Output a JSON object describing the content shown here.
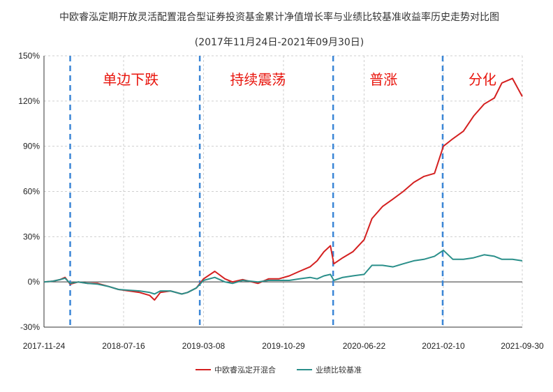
{
  "chart_data": {
    "type": "line",
    "title": "中欧睿泓定期开放灵活配置混合型证券投资基金累计净值增长率与业绩比较基准收益率历史走势对比图",
    "subtitle": "(2017年11月24日-2021年09月30日)",
    "ylim": [
      -30,
      150
    ],
    "y_ticks": [
      "-30%",
      "0%",
      "30%",
      "60%",
      "90%",
      "120%",
      "150%"
    ],
    "y_tick_values": [
      -30,
      0,
      30,
      60,
      90,
      120,
      150
    ],
    "x_ticks": [
      "2017-11-24",
      "2018-07-16",
      "2019-03-08",
      "2019-10-29",
      "2020-06-22",
      "2021-02-10",
      "2021-09-30"
    ],
    "grid": true,
    "legend_position": "bottom",
    "phase_dividers": [
      "2018-02-09",
      "2019-02-25",
      "2020-03-23",
      "2021-02-08"
    ],
    "phases": [
      {
        "label": "单边下跌",
        "center_date": "2018-08-06"
      },
      {
        "label": "持续震荡",
        "center_date": "2019-08-15"
      },
      {
        "label": "普涨",
        "center_date": "2020-08-18"
      },
      {
        "label": "分化",
        "center_date": "2021-06-05"
      }
    ],
    "series": [
      {
        "name": "中欧睿泓定开混合",
        "color": "#d42020",
        "points": [
          [
            "2017-11-24",
            0
          ],
          [
            "2017-12-20",
            0.5
          ],
          [
            "2018-01-10",
            1.5
          ],
          [
            "2018-01-25",
            3
          ],
          [
            "2018-02-09",
            -1.5
          ],
          [
            "2018-03-05",
            0
          ],
          [
            "2018-04-01",
            -1
          ],
          [
            "2018-05-01",
            -1
          ],
          [
            "2018-06-01",
            -3
          ],
          [
            "2018-07-01",
            -5
          ],
          [
            "2018-08-01",
            -6
          ],
          [
            "2018-09-01",
            -7
          ],
          [
            "2018-10-01",
            -9
          ],
          [
            "2018-10-15",
            -12
          ],
          [
            "2018-11-01",
            -7
          ],
          [
            "2018-12-01",
            -6
          ],
          [
            "2019-01-03",
            -8
          ],
          [
            "2019-01-20",
            -7
          ],
          [
            "2019-02-15",
            -4
          ],
          [
            "2019-03-08",
            2
          ],
          [
            "2019-04-10",
            7
          ],
          [
            "2019-05-10",
            2
          ],
          [
            "2019-06-01",
            0
          ],
          [
            "2019-07-01",
            1.5
          ],
          [
            "2019-08-15",
            -1
          ],
          [
            "2019-09-15",
            2
          ],
          [
            "2019-10-15",
            2
          ],
          [
            "2019-11-15",
            4
          ],
          [
            "2019-12-15",
            7
          ],
          [
            "2020-01-15",
            10
          ],
          [
            "2020-02-05",
            14
          ],
          [
            "2020-02-25",
            20
          ],
          [
            "2020-03-15",
            24
          ],
          [
            "2020-03-25",
            12
          ],
          [
            "2020-04-20",
            16
          ],
          [
            "2020-05-20",
            20
          ],
          [
            "2020-06-22",
            28
          ],
          [
            "2020-07-15",
            42
          ],
          [
            "2020-08-15",
            50
          ],
          [
            "2020-09-15",
            55
          ],
          [
            "2020-10-15",
            60
          ],
          [
            "2020-11-15",
            66
          ],
          [
            "2020-12-15",
            70
          ],
          [
            "2021-01-15",
            72
          ],
          [
            "2021-02-10",
            90
          ],
          [
            "2021-03-10",
            95
          ],
          [
            "2021-04-10",
            100
          ],
          [
            "2021-05-10",
            110
          ],
          [
            "2021-06-10",
            118
          ],
          [
            "2021-07-10",
            122
          ],
          [
            "2021-08-01",
            132
          ],
          [
            "2021-09-01",
            135
          ],
          [
            "2021-09-30",
            123
          ]
        ]
      },
      {
        "name": "业绩比较基准",
        "color": "#2a8f8a",
        "points": [
          [
            "2017-11-24",
            0
          ],
          [
            "2017-12-20",
            0.5
          ],
          [
            "2018-01-10",
            1.5
          ],
          [
            "2018-01-25",
            2.5
          ],
          [
            "2018-02-09",
            -1
          ],
          [
            "2018-03-05",
            0
          ],
          [
            "2018-04-01",
            -1
          ],
          [
            "2018-05-01",
            -1.5
          ],
          [
            "2018-06-01",
            -3
          ],
          [
            "2018-07-01",
            -5
          ],
          [
            "2018-08-01",
            -5.5
          ],
          [
            "2018-09-01",
            -6
          ],
          [
            "2018-10-01",
            -7
          ],
          [
            "2018-10-15",
            -8
          ],
          [
            "2018-11-01",
            -6
          ],
          [
            "2018-12-01",
            -6
          ],
          [
            "2019-01-03",
            -8
          ],
          [
            "2019-01-20",
            -7
          ],
          [
            "2019-02-15",
            -4
          ],
          [
            "2019-03-08",
            1
          ],
          [
            "2019-04-10",
            3
          ],
          [
            "2019-05-10",
            0
          ],
          [
            "2019-06-01",
            -1
          ],
          [
            "2019-07-01",
            1
          ],
          [
            "2019-08-15",
            0
          ],
          [
            "2019-09-15",
            1
          ],
          [
            "2019-10-15",
            1
          ],
          [
            "2019-11-15",
            1
          ],
          [
            "2019-12-15",
            2
          ],
          [
            "2020-01-15",
            3
          ],
          [
            "2020-02-05",
            2
          ],
          [
            "2020-02-25",
            4
          ],
          [
            "2020-03-15",
            5
          ],
          [
            "2020-03-25",
            1
          ],
          [
            "2020-04-20",
            3
          ],
          [
            "2020-05-20",
            4
          ],
          [
            "2020-06-22",
            5
          ],
          [
            "2020-07-15",
            11
          ],
          [
            "2020-08-15",
            11
          ],
          [
            "2020-09-15",
            10
          ],
          [
            "2020-10-15",
            12
          ],
          [
            "2020-11-15",
            14
          ],
          [
            "2020-12-15",
            15
          ],
          [
            "2021-01-15",
            17
          ],
          [
            "2021-02-10",
            21
          ],
          [
            "2021-03-10",
            15
          ],
          [
            "2021-04-10",
            15
          ],
          [
            "2021-05-10",
            16
          ],
          [
            "2021-06-10",
            18
          ],
          [
            "2021-07-10",
            17
          ],
          [
            "2021-08-01",
            15
          ],
          [
            "2021-09-01",
            15
          ],
          [
            "2021-09-30",
            14
          ]
        ]
      }
    ]
  }
}
